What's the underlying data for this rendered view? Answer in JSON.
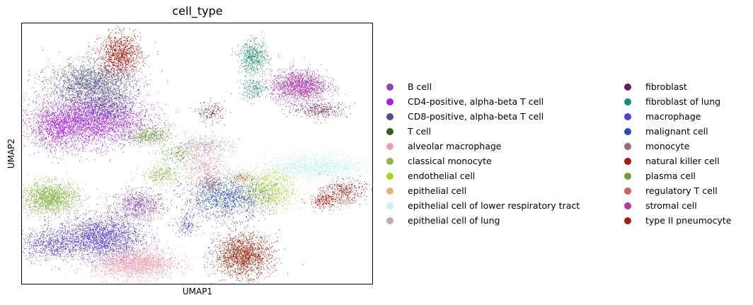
{
  "chart_data": {
    "type": "scatter",
    "title": "cell_type",
    "xlabel": "UMAP1",
    "ylabel": "UMAP2",
    "xlim": [
      0,
      100
    ],
    "ylim": [
      0,
      100
    ],
    "grid": false,
    "legend_position": "right",
    "legend_columns": 2,
    "series": [
      {
        "name": "B cell",
        "color": "#8e44ad",
        "clusters": [
          [
            33,
            30,
            4,
            3,
            700
          ]
        ]
      },
      {
        "name": "CD4-positive, alpha-beta T cell",
        "color": "#a61df0",
        "clusters": [
          [
            20,
            63,
            8,
            5,
            3000
          ],
          [
            10,
            60,
            4,
            4,
            800
          ]
        ]
      },
      {
        "name": "CD8-positive, alpha-beta T cell",
        "color": "#4f4f85",
        "clusters": [
          [
            20,
            77,
            6,
            4,
            1800
          ],
          [
            24,
            68,
            4,
            3,
            500
          ]
        ]
      },
      {
        "name": "T cell",
        "color": "#3b5a1e",
        "clusters": []
      },
      {
        "name": "alveolar macrophage",
        "color": "#f0a0b0",
        "clusters": [
          [
            32,
            8,
            6,
            3,
            2200
          ],
          [
            52,
            45,
            3,
            3,
            400
          ]
        ]
      },
      {
        "name": "classical monocyte",
        "color": "#8ab84a",
        "clusters": [
          [
            8,
            33,
            4,
            3,
            1600
          ],
          [
            40,
            42,
            3,
            2,
            300
          ]
        ]
      },
      {
        "name": "endothelial cell",
        "color": "#a6d62a",
        "clusters": [
          [
            70,
            36,
            4,
            4,
            900
          ]
        ]
      },
      {
        "name": "epithelial cell",
        "color": "#e2b083",
        "clusters": [
          [
            63,
            41,
            2,
            1,
            200
          ]
        ]
      },
      {
        "name": "epithelial cell of lower respiratory tract",
        "color": "#c8f2ee",
        "clusters": [
          [
            84,
            45,
            7,
            2.5,
            1800
          ]
        ]
      },
      {
        "name": "epithelial cell of lung",
        "color": "#c8a8b6",
        "clusters": [
          [
            52,
            53,
            4,
            2,
            500
          ]
        ]
      },
      {
        "name": "fibroblast",
        "color": "#6a1e58",
        "clusters": [
          [
            85,
            67,
            4,
            1.5,
            300
          ],
          [
            54,
            66,
            2,
            2,
            150
          ]
        ]
      },
      {
        "name": "fibroblast of lung",
        "color": "#1a8c70",
        "clusters": [
          [
            66,
            87,
            2,
            3,
            500
          ],
          [
            66,
            75,
            2,
            2,
            200
          ]
        ]
      },
      {
        "name": "macrophage",
        "color": "#5a3fd8",
        "clusters": [
          [
            22,
            18,
            6,
            4,
            2200
          ],
          [
            8,
            15,
            4,
            3,
            600
          ],
          [
            47,
            23,
            1.5,
            2,
            150
          ]
        ]
      },
      {
        "name": "malignant cell",
        "color": "#2a4bb8",
        "clusters": [
          [
            58,
            33,
            6,
            4,
            1200
          ]
        ]
      },
      {
        "name": "monocyte",
        "color": "#9a6a70",
        "clusters": [
          [
            54,
            39,
            2,
            2,
            200
          ]
        ]
      },
      {
        "name": "natural killer cell",
        "color": "#b0160c",
        "clusters": [
          [
            28,
            88,
            3,
            4,
            1000
          ],
          [
            92,
            36,
            3,
            2,
            300
          ],
          [
            86,
            32,
            2,
            1.5,
            200
          ]
        ]
      },
      {
        "name": "plasma cell",
        "color": "#6ea03a",
        "clusters": [
          [
            36,
            57,
            3,
            1.5,
            400
          ],
          [
            45,
            50,
            3,
            2,
            200
          ]
        ]
      },
      {
        "name": "regulatory T cell",
        "color": "#d26060",
        "clusters": [
          [
            92,
            32,
            2,
            1,
            100
          ]
        ]
      },
      {
        "name": "stromal cell",
        "color": "#b03aa6",
        "clusters": [
          [
            79,
            76,
            4,
            3,
            1500
          ]
        ]
      },
      {
        "name": "type II pneumocyte",
        "color": "#a0220a",
        "clusters": [
          [
            63,
            11,
            4,
            4,
            1600
          ]
        ]
      }
    ]
  }
}
